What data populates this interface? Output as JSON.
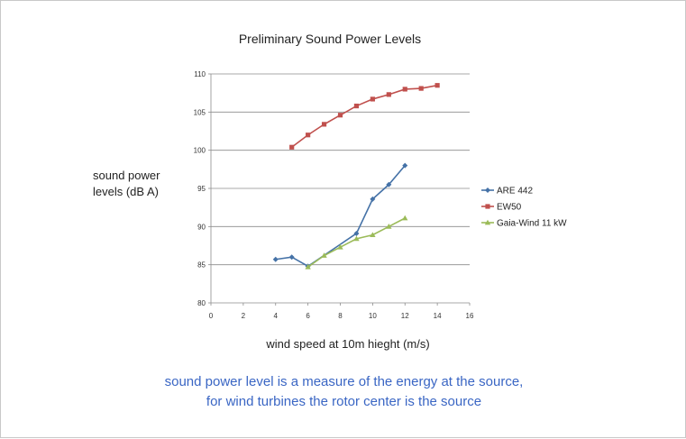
{
  "chart_data": {
    "type": "line",
    "title": "Preliminary Sound Power Levels",
    "xlabel": "wind speed at 10m hieght (m/s)",
    "ylabel_lines": [
      "sound power",
      "levels (dB A)"
    ],
    "xlim": [
      0,
      16
    ],
    "ylim": [
      80,
      110
    ],
    "x_ticks": [
      "0",
      "2",
      "4",
      "6",
      "8",
      "10",
      "12",
      "14",
      "16"
    ],
    "y_ticks": [
      "80",
      "85",
      "90",
      "95",
      "100",
      "105",
      "110"
    ],
    "grid": "horizontal",
    "legend_position": "right",
    "series": [
      {
        "name": "ARE 442",
        "color": "#4572a7",
        "marker": "diamond",
        "x": [
          4,
          5,
          6,
          9,
          10,
          11,
          12
        ],
        "y": [
          85.7,
          86.0,
          84.8,
          89.1,
          93.6,
          95.5,
          98.0
        ]
      },
      {
        "name": "EW50",
        "color": "#c0504d",
        "marker": "square",
        "x": [
          5,
          6,
          7,
          8,
          9,
          10,
          11,
          12,
          13,
          14
        ],
        "y": [
          100.4,
          102.0,
          103.4,
          104.6,
          105.8,
          106.7,
          107.3,
          108.0,
          108.1,
          108.5
        ]
      },
      {
        "name": "Gaia-Wind 11 kW",
        "color": "#9bbb59",
        "marker": "triangle",
        "x": [
          6,
          7,
          8,
          9,
          10,
          11,
          12
        ],
        "y": [
          84.7,
          86.2,
          87.3,
          88.4,
          88.9,
          90.0,
          91.1
        ]
      }
    ]
  },
  "caption": {
    "line1": "sound power level is a measure of the energy at the source,",
    "line2": "for wind turbines the rotor center is the source"
  }
}
